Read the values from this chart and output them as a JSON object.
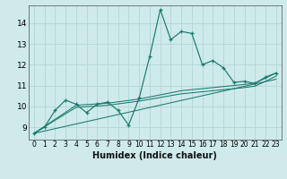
{
  "xlabel": "Humidex (Indice chaleur)",
  "bg_color": "#ceeaea",
  "grid_color": "#b8d8d8",
  "line_color": "#1a7a6e",
  "xlim": [
    -0.5,
    23.5
  ],
  "ylim": [
    8.4,
    14.85
  ],
  "xticks": [
    0,
    1,
    2,
    3,
    4,
    5,
    6,
    7,
    8,
    9,
    10,
    11,
    12,
    13,
    14,
    15,
    16,
    17,
    18,
    19,
    20,
    21,
    22,
    23
  ],
  "yticks": [
    9,
    10,
    11,
    12,
    13,
    14
  ],
  "main_x": [
    0,
    1,
    2,
    3,
    4,
    5,
    6,
    7,
    8,
    9,
    10,
    11,
    12,
    13,
    14,
    15,
    16,
    17,
    18,
    19,
    20,
    21,
    22,
    23
  ],
  "main_y": [
    8.7,
    9.0,
    9.8,
    10.3,
    10.1,
    9.7,
    10.1,
    10.2,
    9.8,
    9.1,
    10.4,
    12.4,
    14.65,
    13.2,
    13.6,
    13.5,
    12.0,
    12.2,
    11.85,
    11.15,
    11.2,
    11.1,
    11.4,
    11.6
  ],
  "trend1_x": [
    0,
    4,
    7,
    10,
    14,
    17,
    19,
    20,
    21,
    22,
    23
  ],
  "trend1_y": [
    8.7,
    10.05,
    10.15,
    10.35,
    10.75,
    10.9,
    11.0,
    11.05,
    11.12,
    11.35,
    11.6
  ],
  "trend2_x": [
    0,
    4,
    7,
    10,
    14,
    17,
    19,
    20,
    21,
    22,
    23
  ],
  "trend2_y": [
    8.7,
    9.95,
    10.05,
    10.25,
    10.6,
    10.75,
    10.85,
    10.9,
    10.97,
    11.2,
    11.45
  ],
  "trend3_x": [
    0,
    23
  ],
  "trend3_y": [
    8.7,
    11.3
  ]
}
